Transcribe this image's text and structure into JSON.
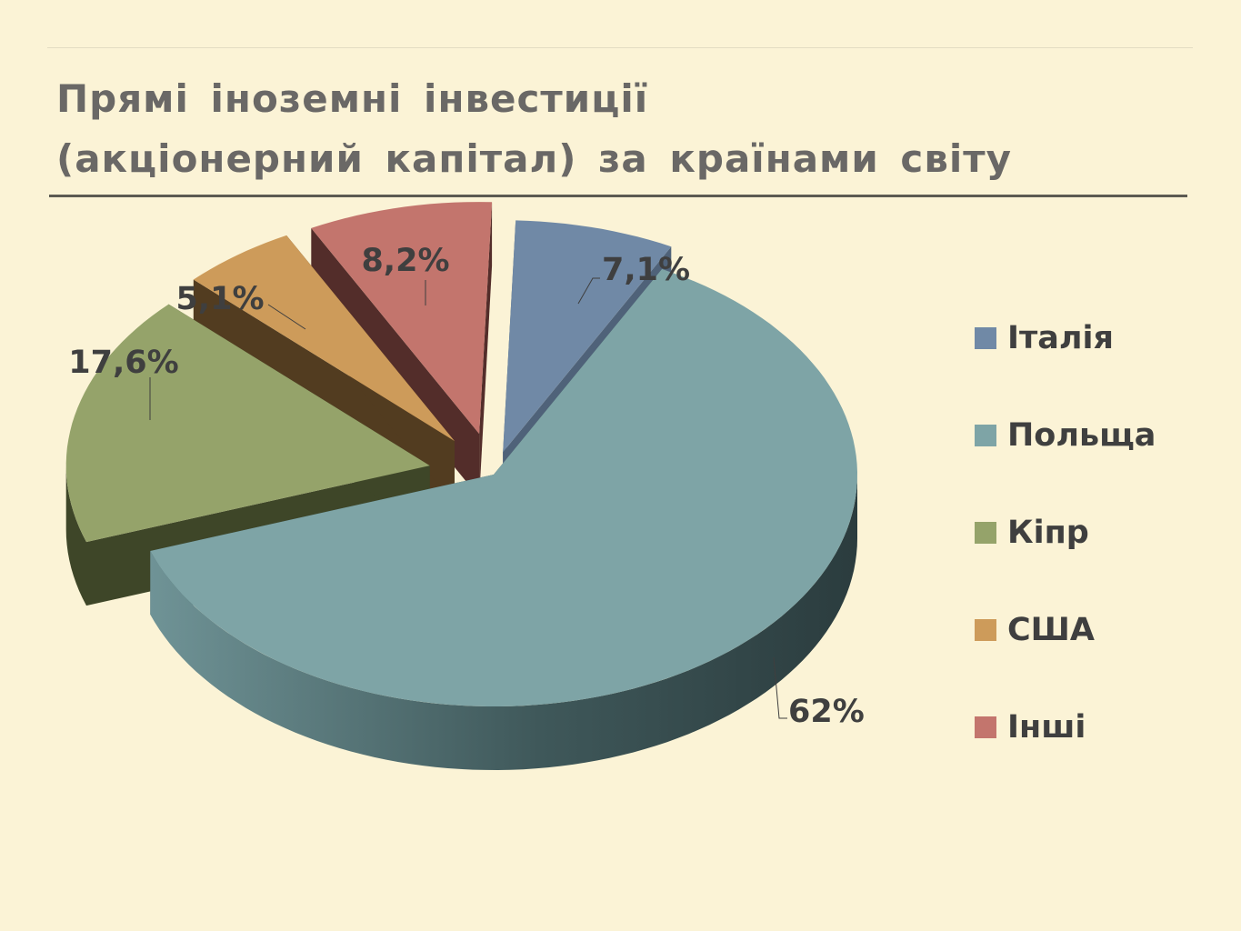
{
  "slide": {
    "title_line1": "Прямі іноземні інвестиції",
    "title_line2": "(акціонерний капітал) за країнами світу"
  },
  "chart_data": {
    "type": "pie",
    "style": "3d-exploded",
    "legend_position": "right",
    "slices": [
      {
        "name": "Італія",
        "value": 7.1,
        "label": "7,1%",
        "color": "#7089a6",
        "side_color": "#4f6279"
      },
      {
        "name": "Польща",
        "value": 62,
        "label": "62%",
        "color": "#7ea4a6",
        "side_color": "#3e5658"
      },
      {
        "name": "Кіпр",
        "value": 17.6,
        "label": "17,6%",
        "color": "#95a36a",
        "side_color": "#3e4628"
      },
      {
        "name": "США",
        "value": 5.1,
        "label": "5,1%",
        "color": "#cd9b5a",
        "side_color": "#523c20"
      },
      {
        "name": "Інші",
        "value": 8.2,
        "label": "8,2%",
        "color": "#c3756d",
        "side_color": "#532d2a"
      }
    ]
  }
}
